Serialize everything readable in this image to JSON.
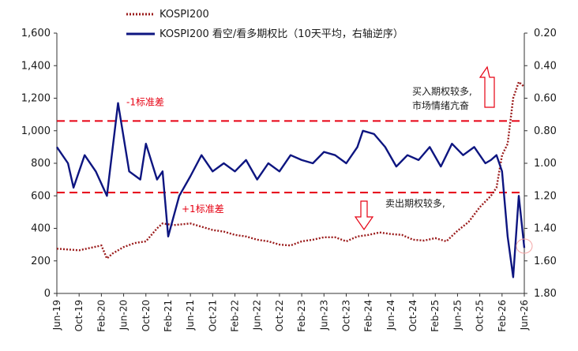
{
  "chart_data": {
    "type": "line",
    "legend": {
      "placement": "top-center",
      "entries": [
        {
          "label": "KOSPI200",
          "style": "dotted",
          "color": "#9b1c1c"
        },
        {
          "label": "KOSPI200 看空/看多期权比（10天平均，右轴逆序）",
          "style": "solid",
          "color": "#0d1580"
        }
      ]
    },
    "x_axis": {
      "ticks": [
        "Jun-19",
        "Oct-19",
        "Feb-20",
        "Jun-20",
        "Oct-20",
        "Feb-21",
        "Jun-21",
        "Oct-21",
        "Feb-22",
        "Jun-22",
        "Oct-22",
        "Feb-23",
        "Jun-23",
        "Oct-23",
        "Feb-24",
        "Jun-24",
        "Oct-24",
        "Feb-25",
        "Jun-25",
        "Oct-25",
        "Feb-26",
        "Jun-26"
      ],
      "range": [
        "2019-06",
        "2026-06"
      ]
    },
    "y_left": {
      "range": [
        0,
        1600
      ],
      "ticks": [
        "0",
        "200",
        "400",
        "600",
        "800",
        "1,000",
        "1,200",
        "1,400",
        "1,600"
      ]
    },
    "y_right": {
      "range": [
        0.2,
        1.8
      ],
      "reversed": true,
      "ticks": [
        "0.20",
        "0.40",
        "0.60",
        "0.80",
        "1.00",
        "1.20",
        "1.40",
        "1.60",
        "1.80"
      ]
    },
    "reference_lines": [
      {
        "label": "-1标准差",
        "y_right": 0.74,
        "color": "#e60012",
        "style": "dashed"
      },
      {
        "label": "+1标准差",
        "y_right": 1.18,
        "color": "#e60012",
        "style": "dashed"
      }
    ],
    "annotations": {
      "top_right_line1": "买入期权较多,",
      "top_right_line2": "市场情绪亢奋",
      "bottom_right": "卖出期权较多,"
    },
    "series": [
      {
        "name": "KOSPI200",
        "axis": "left",
        "color": "#9b1c1c",
        "x": [
          "2019-06",
          "2019-08",
          "2019-10",
          "2019-12",
          "2020-02",
          "2020-03",
          "2020-04",
          "2020-06",
          "2020-08",
          "2020-10",
          "2020-12",
          "2021-01",
          "2021-03",
          "2021-06",
          "2021-08",
          "2021-10",
          "2021-12",
          "2022-02",
          "2022-04",
          "2022-06",
          "2022-08",
          "2022-10",
          "2022-12",
          "2023-02",
          "2023-04",
          "2023-06",
          "2023-08",
          "2023-10",
          "2023-12",
          "2024-02",
          "2024-04",
          "2024-06",
          "2024-08",
          "2024-10",
          "2024-12",
          "2025-02",
          "2025-04",
          "2025-06",
          "2025-08",
          "2025-10",
          "2025-12",
          "2026-01",
          "2026-02",
          "2026-03",
          "2026-04",
          "2026-05",
          "2026-06"
        ],
        "values": [
          275,
          270,
          265,
          280,
          295,
          215,
          245,
          285,
          310,
          320,
          400,
          430,
          420,
          430,
          410,
          390,
          380,
          360,
          350,
          330,
          320,
          300,
          295,
          320,
          330,
          345,
          345,
          320,
          350,
          360,
          375,
          365,
          360,
          330,
          325,
          340,
          320,
          385,
          440,
          530,
          600,
          650,
          850,
          920,
          1200,
          1300,
          1270
        ]
      },
      {
        "name": "KOSPI200 看空/看多期权比（10天平均，右轴逆序）",
        "axis": "right",
        "color": "#0d1580",
        "x": [
          "2019-06",
          "2019-08",
          "2019-09",
          "2019-11",
          "2020-01",
          "2020-03",
          "2020-05",
          "2020-07",
          "2020-09",
          "2020-10",
          "2020-12",
          "2021-01",
          "2021-02",
          "2021-04",
          "2021-06",
          "2021-08",
          "2021-10",
          "2021-12",
          "2022-02",
          "2022-04",
          "2022-06",
          "2022-08",
          "2022-10",
          "2022-12",
          "2023-02",
          "2023-04",
          "2023-06",
          "2023-08",
          "2023-10",
          "2023-12",
          "2024-01",
          "2024-03",
          "2024-05",
          "2024-07",
          "2024-09",
          "2024-11",
          "2025-01",
          "2025-03",
          "2025-05",
          "2025-07",
          "2025-09",
          "2025-11",
          "2025-12",
          "2026-01",
          "2026-02",
          "2026-03",
          "2026-04",
          "2026-05",
          "2026-06"
        ],
        "values": [
          0.9,
          1.0,
          1.15,
          0.95,
          1.05,
          1.2,
          0.63,
          1.05,
          1.1,
          0.88,
          1.1,
          1.05,
          1.45,
          1.2,
          1.08,
          0.95,
          1.05,
          1.0,
          1.05,
          0.98,
          1.1,
          1.0,
          1.05,
          0.95,
          0.98,
          1.0,
          0.93,
          0.95,
          1.0,
          0.9,
          0.8,
          0.82,
          0.9,
          1.02,
          0.95,
          0.98,
          0.9,
          1.02,
          0.88,
          0.95,
          0.9,
          1.0,
          0.98,
          0.95,
          1.05,
          1.45,
          1.7,
          1.2,
          1.52
        ]
      }
    ]
  }
}
